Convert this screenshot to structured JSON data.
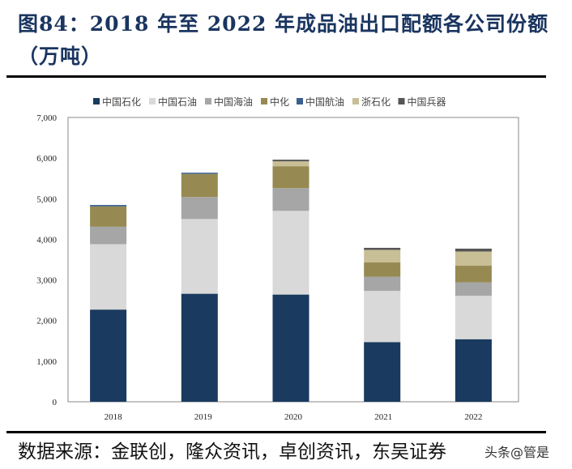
{
  "title": "图84：2018 年至 2022 年成品油出口配额各公司份额（万吨）",
  "source": "数据来源：金联创，隆众资讯，卓创资讯，东吴证券",
  "watermark": "头条@管是",
  "chart_data": {
    "type": "bar",
    "stacked": true,
    "title": "",
    "xlabel": "",
    "ylabel": "",
    "ylim": [
      0,
      7000
    ],
    "yticks": [
      0,
      1000,
      2000,
      3000,
      4000,
      5000,
      6000,
      7000
    ],
    "ytick_labels": [
      "0",
      "1,000",
      "2,000",
      "3,000",
      "4,000",
      "5,000",
      "6,000",
      "7,000"
    ],
    "categories": [
      "2018",
      "2019",
      "2020",
      "2021",
      "2022"
    ],
    "legend_position": "top",
    "grid": false,
    "series": [
      {
        "name": "中国石化",
        "color": "#1a3a5f",
        "values": [
          2270,
          2660,
          2640,
          1470,
          1540
        ]
      },
      {
        "name": "中国石油",
        "color": "#d9d9d9",
        "values": [
          1610,
          1840,
          2060,
          1260,
          1070
        ]
      },
      {
        "name": "中国海油",
        "color": "#a6a6a6",
        "values": [
          430,
          540,
          560,
          350,
          330
        ]
      },
      {
        "name": "中化",
        "color": "#968a52",
        "values": [
          500,
          570,
          540,
          350,
          410
        ]
      },
      {
        "name": "中国航油",
        "color": "#3b5f8f",
        "values": [
          35,
          30,
          0,
          0,
          0
        ]
      },
      {
        "name": "浙石化",
        "color": "#c8bf96",
        "values": [
          0,
          0,
          120,
          310,
          350
        ]
      },
      {
        "name": "中国兵器",
        "color": "#555555",
        "values": [
          0,
          0,
          40,
          50,
          70
        ]
      }
    ]
  }
}
